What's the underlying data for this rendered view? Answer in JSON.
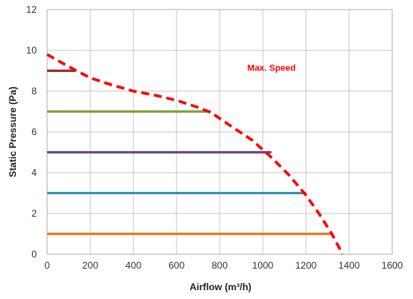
{
  "chart_data": {
    "type": "line",
    "xlabel": "Airflow (m³/h)",
    "ylabel": "Static Pressure (Pa)",
    "xlim": [
      0,
      1600
    ],
    "ylim": [
      0,
      12
    ],
    "xticks": [
      0,
      200,
      400,
      600,
      800,
      1000,
      1200,
      1400,
      1600
    ],
    "yticks": [
      0,
      2,
      4,
      6,
      8,
      10,
      12
    ],
    "grid": true,
    "annotations": [
      {
        "text": "Max. Speed",
        "x": 1040,
        "y": 9.0,
        "color": "#ff0000"
      }
    ],
    "series": [
      {
        "name": "Max. Speed",
        "style": "dashed",
        "color": "#ff0000",
        "x": [
          0,
          100,
          200,
          300,
          400,
          500,
          600,
          700,
          760,
          850,
          950,
          1040,
          1120,
          1200,
          1260,
          1320,
          1370
        ],
        "y": [
          9.8,
          9.2,
          8.65,
          8.3,
          8.0,
          7.8,
          7.55,
          7.2,
          6.95,
          6.3,
          5.6,
          4.75,
          3.9,
          2.9,
          2.0,
          1.0,
          0
        ]
      },
      {
        "style": "solid",
        "color": "#a0302a",
        "x": [
          0,
          130
        ],
        "y": [
          9,
          9
        ]
      },
      {
        "style": "solid",
        "color": "#7ea43c",
        "x": [
          0,
          760
        ],
        "y": [
          7,
          7
        ]
      },
      {
        "style": "solid",
        "color": "#6a4a93",
        "x": [
          0,
          1040
        ],
        "y": [
          5,
          5
        ]
      },
      {
        "style": "solid",
        "color": "#3a93b0",
        "x": [
          0,
          1200
        ],
        "y": [
          3,
          3
        ]
      },
      {
        "style": "solid",
        "color": "#ee7a1f",
        "x": [
          0,
          1320
        ],
        "y": [
          1,
          1
        ]
      }
    ]
  }
}
